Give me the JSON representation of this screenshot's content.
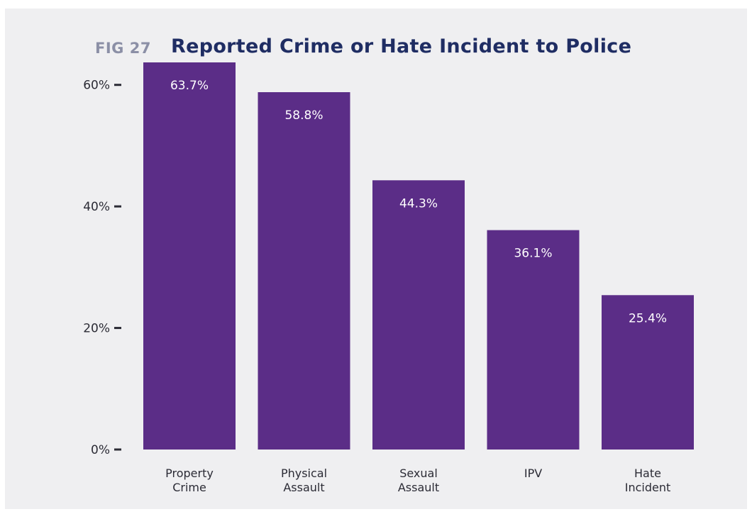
{
  "figure": {
    "number": "FIG 27",
    "title": "Reported Crime or Hate Incident to Police"
  },
  "colors": {
    "bar": "#5b2d87",
    "background": "#efeff1",
    "title": "#1f2d63",
    "fig_number": "#8b8fa6",
    "bar_text": "#ffffff",
    "axis_text": "#2b2b35"
  },
  "chart_data": {
    "type": "bar",
    "title": "Reported Crime or Hate Incident to Police",
    "categories": [
      [
        "Property",
        "Crime"
      ],
      [
        "Physical",
        "Assault"
      ],
      [
        "Sexual",
        "Assault"
      ],
      [
        "IPV"
      ],
      [
        "Hate",
        "Incident"
      ]
    ],
    "values": [
      63.7,
      58.8,
      44.3,
      36.1,
      25.4
    ],
    "data_labels": [
      "63.7%",
      "58.8%",
      "44.3%",
      "36.1%",
      "25.4%"
    ],
    "xlabel": "",
    "ylabel": "",
    "ylim": [
      0,
      63.7
    ],
    "yticks": [
      0,
      20,
      40,
      60
    ],
    "ytick_labels": [
      "0%",
      "20%",
      "40%",
      "60%"
    ],
    "grid": false,
    "legend": "none"
  }
}
